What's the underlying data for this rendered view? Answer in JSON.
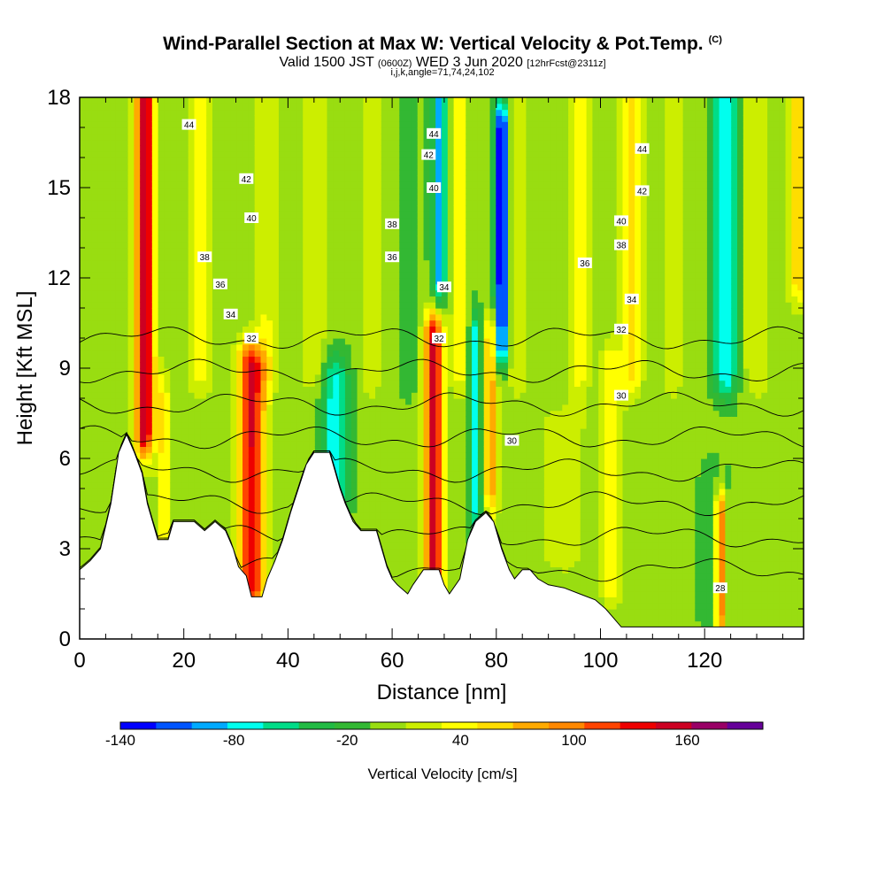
{
  "header": {
    "title": "Wind-Parallel Section at Max W: Vertical Velocity & Pot.Temp.",
    "copyright": "(C)",
    "subtitle_a": "Valid 1500 JST",
    "subtitle_b": "(0600Z)",
    "subtitle_c": "WED 3 Jun 2020",
    "subtitle_d": "[12hrFcst@2311z]",
    "indices": "i,j,k,angle=71,74,24,102"
  },
  "chart_data": {
    "type": "heatmap",
    "xlabel": "Distance [nm]",
    "ylabel": "Height [Kft MSL]",
    "xlim": [
      0,
      139
    ],
    "ylim": [
      0,
      18
    ],
    "xticks": [
      0,
      20,
      40,
      60,
      80,
      100,
      120
    ],
    "yticks": [
      0,
      3,
      6,
      9,
      12,
      15,
      18
    ],
    "colorbar": {
      "label": "Vertical Velocity [cm/s]",
      "ticks": [
        -140,
        -80,
        -20,
        40,
        100,
        160
      ],
      "bounds": [
        -140,
        -120,
        -100,
        -80,
        -60,
        -40,
        -20,
        0,
        20,
        40,
        60,
        80,
        100,
        120,
        140,
        160,
        180,
        200
      ],
      "colors": [
        "#0000ff",
        "#0055ff",
        "#00aaff",
        "#00ffee",
        "#00dd88",
        "#22bb44",
        "#33b833",
        "#99dd11",
        "#ccee00",
        "#ffff00",
        "#ffdd00",
        "#ffaa00",
        "#ff8800",
        "#ff4400",
        "#ee0000",
        "#cc0022",
        "#990066",
        "#660099"
      ]
    },
    "background_w": 5,
    "w_features": [
      {
        "x": 12.5,
        "w": 185,
        "y0": 7,
        "y1": 18,
        "width": 1.8
      },
      {
        "x": 16,
        "w": 60,
        "y0": 3.5,
        "y1": 8,
        "width": 1.2
      },
      {
        "x": 23,
        "w": 50,
        "y0": 9,
        "y1": 18,
        "width": 2.5
      },
      {
        "x": 33,
        "w": 160,
        "y0": 2,
        "y1": 9,
        "width": 2.6
      },
      {
        "x": 36,
        "w": 40,
        "y0": 9,
        "y1": 18,
        "width": 2.0
      },
      {
        "x": 45,
        "w": 35,
        "y0": 9,
        "y1": 18,
        "width": 3.0
      },
      {
        "x": 49,
        "w": -75,
        "y0": 5,
        "y1": 8.5,
        "width": 2.5
      },
      {
        "x": 56,
        "w": 40,
        "y0": 9,
        "y1": 18,
        "width": 2.0
      },
      {
        "x": 63,
        "w": -20,
        "y0": 9,
        "y1": 18,
        "width": 1.5
      },
      {
        "x": 68,
        "w": 165,
        "y0": 2,
        "y1": 10,
        "width": 1.8
      },
      {
        "x": 69,
        "w": -90,
        "y0": 12,
        "y1": 18,
        "width": 1.4
      },
      {
        "x": 73,
        "w": 50,
        "y0": 9,
        "y1": 18,
        "width": 1.6
      },
      {
        "x": 76,
        "w": -70,
        "y0": 4.5,
        "y1": 10,
        "width": 1.2
      },
      {
        "x": 79,
        "w": 90,
        "y0": 5,
        "y1": 10,
        "width": 1.4
      },
      {
        "x": 81,
        "w": -140,
        "y0": 10,
        "y1": 17,
        "width": 1.4
      },
      {
        "x": 84,
        "w": 40,
        "y0": 9,
        "y1": 18,
        "width": 2.0
      },
      {
        "x": 93,
        "w": 30,
        "y0": 3,
        "y1": 7,
        "width": 5.0
      },
      {
        "x": 96,
        "w": 50,
        "y0": 9,
        "y1": 18,
        "width": 2.0
      },
      {
        "x": 102,
        "w": 55,
        "y0": 2,
        "y1": 9,
        "width": 2.0
      },
      {
        "x": 106,
        "w": 70,
        "y0": 9,
        "y1": 18,
        "width": 2.0
      },
      {
        "x": 114,
        "w": 40,
        "y0": 9,
        "y1": 18,
        "width": 1.8
      },
      {
        "x": 122,
        "w": -15,
        "y0": 1,
        "y1": 5,
        "width": 3.0
      },
      {
        "x": 123,
        "w": 140,
        "y0": 1,
        "y1": 4,
        "width": 1.0
      },
      {
        "x": 124,
        "w": -85,
        "y0": 9,
        "y1": 18,
        "width": 2.2
      },
      {
        "x": 130,
        "w": 40,
        "y0": 9,
        "y1": 18,
        "width": 2.5
      },
      {
        "x": 138,
        "w": 70,
        "y0": 12,
        "y1": 18,
        "width": 2.0
      }
    ],
    "terrain_profile": [
      [
        0,
        2.3
      ],
      [
        2,
        2.6
      ],
      [
        4,
        3.0
      ],
      [
        6,
        4.5
      ],
      [
        7.5,
        6.2
      ],
      [
        9,
        6.8
      ],
      [
        10.5,
        6.2
      ],
      [
        12,
        5.5
      ],
      [
        13,
        4.5
      ],
      [
        14,
        3.9
      ],
      [
        15,
        3.3
      ],
      [
        17,
        3.3
      ],
      [
        18,
        3.9
      ],
      [
        22,
        3.9
      ],
      [
        24,
        3.6
      ],
      [
        26,
        3.9
      ],
      [
        28,
        3.6
      ],
      [
        29.5,
        3.0
      ],
      [
        30.5,
        2.4
      ],
      [
        32,
        2.1
      ],
      [
        33,
        1.4
      ],
      [
        35,
        1.4
      ],
      [
        36,
        2.0
      ],
      [
        37.5,
        2.6
      ],
      [
        39,
        3.3
      ],
      [
        40.5,
        4.2
      ],
      [
        42,
        5.0
      ],
      [
        43.5,
        5.8
      ],
      [
        45,
        6.2
      ],
      [
        48,
        6.2
      ],
      [
        49,
        5.6
      ],
      [
        50,
        5.0
      ],
      [
        51,
        4.5
      ],
      [
        52.5,
        3.9
      ],
      [
        54,
        3.6
      ],
      [
        57,
        3.6
      ],
      [
        58,
        3.0
      ],
      [
        59,
        2.4
      ],
      [
        60,
        2.0
      ],
      [
        61,
        1.8
      ],
      [
        63,
        1.5
      ],
      [
        64,
        1.8
      ],
      [
        66,
        2.3
      ],
      [
        69,
        2.3
      ],
      [
        70,
        1.8
      ],
      [
        71,
        1.5
      ],
      [
        73,
        2.0
      ],
      [
        74.5,
        3.3
      ],
      [
        76,
        3.9
      ],
      [
        78,
        4.2
      ],
      [
        79.5,
        3.9
      ],
      [
        81,
        3.0
      ],
      [
        82.5,
        2.3
      ],
      [
        83.5,
        2.0
      ],
      [
        85,
        2.3
      ],
      [
        86.5,
        2.3
      ],
      [
        88,
        2.0
      ],
      [
        90,
        1.8
      ],
      [
        93,
        1.7
      ],
      [
        96,
        1.5
      ],
      [
        99,
        1.3
      ],
      [
        101,
        1.0
      ],
      [
        102,
        0.8
      ],
      [
        104,
        0.4
      ],
      [
        139,
        0.4
      ]
    ],
    "isotherm_levels": [
      30,
      32,
      34,
      36,
      38,
      40,
      42,
      44
    ],
    "contour_labels": [
      {
        "x": 21,
        "y": 17.1,
        "text": "44"
      },
      {
        "x": 68,
        "y": 16.8,
        "text": "44"
      },
      {
        "x": 108,
        "y": 16.3,
        "text": "44"
      },
      {
        "x": 32,
        "y": 15.3,
        "text": "42"
      },
      {
        "x": 67,
        "y": 16.1,
        "text": "42"
      },
      {
        "x": 108,
        "y": 14.9,
        "text": "42"
      },
      {
        "x": 33,
        "y": 14.0,
        "text": "40"
      },
      {
        "x": 68,
        "y": 15.0,
        "text": "40"
      },
      {
        "x": 104,
        "y": 13.9,
        "text": "40"
      },
      {
        "x": 24,
        "y": 12.7,
        "text": "38"
      },
      {
        "x": 60,
        "y": 13.8,
        "text": "38"
      },
      {
        "x": 104,
        "y": 13.1,
        "text": "38"
      },
      {
        "x": 27,
        "y": 11.8,
        "text": "36"
      },
      {
        "x": 60,
        "y": 12.7,
        "text": "36"
      },
      {
        "x": 97,
        "y": 12.5,
        "text": "36"
      },
      {
        "x": 29,
        "y": 10.8,
        "text": "34"
      },
      {
        "x": 70,
        "y": 11.7,
        "text": "34"
      },
      {
        "x": 106,
        "y": 11.3,
        "text": "34"
      },
      {
        "x": 33,
        "y": 10.0,
        "text": "32"
      },
      {
        "x": 69,
        "y": 10.0,
        "text": "32"
      },
      {
        "x": 104,
        "y": 10.3,
        "text": "32"
      },
      {
        "x": 104,
        "y": 8.1,
        "text": "30"
      },
      {
        "x": 83,
        "y": 6.6,
        "text": "30"
      },
      {
        "x": 123,
        "y": 1.7,
        "text": "28"
      }
    ]
  }
}
